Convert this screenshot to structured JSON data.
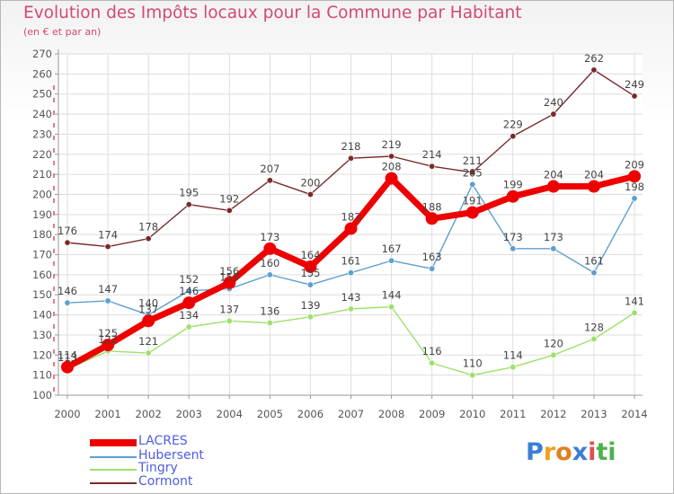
{
  "title": "Evolution des Impôts locaux pour la Commune par Habitant",
  "subtitle": "(en € et par an)",
  "brand": {
    "letters": [
      "P",
      "r",
      "o",
      "x",
      "i",
      "t",
      "i"
    ],
    "colors": [
      "#3a7fd5",
      "#f0a020",
      "#e08020",
      "#3a7fd5",
      "#e05050",
      "#50b050",
      "#50b050"
    ]
  },
  "chart_data": {
    "type": "line",
    "x": [
      "2000",
      "2001",
      "2002",
      "2003",
      "2004",
      "2005",
      "2006",
      "2007",
      "2008",
      "2009",
      "2010",
      "2011",
      "2012",
      "2013",
      "2014"
    ],
    "ylim": [
      100,
      270
    ],
    "yticks": [
      100,
      110,
      120,
      130,
      140,
      150,
      160,
      170,
      180,
      190,
      200,
      210,
      220,
      230,
      240,
      250,
      260,
      270
    ],
    "grid": true,
    "legend_position": "bottom-left",
    "series": [
      {
        "name": "Cormont",
        "color": "#7a2a2a",
        "values": [
          176,
          174,
          178,
          195,
          192,
          207,
          200,
          218,
          219,
          214,
          211,
          229,
          240,
          262,
          249
        ]
      },
      {
        "name": "Tingry",
        "color": "#9ee06a",
        "values": [
          113,
          122,
          121,
          134,
          137,
          136,
          139,
          143,
          144,
          116,
          110,
          114,
          120,
          128,
          141
        ]
      },
      {
        "name": "Hubersent",
        "color": "#5c9fd0",
        "values": [
          146,
          147,
          140,
          152,
          153,
          160,
          155,
          161,
          167,
          163,
          205,
          173,
          173,
          161,
          198
        ]
      },
      {
        "name": "LACRES",
        "color": "#ee0000",
        "values": [
          114,
          125,
          137,
          146,
          156,
          173,
          164,
          183,
          208,
          188,
          191,
          199,
          204,
          204,
          209
        ]
      }
    ],
    "labels": {
      "Cormont": [
        "176",
        "174",
        "178",
        "195",
        "192",
        "207",
        "200",
        "218",
        "219",
        "214",
        "211",
        "229",
        "240",
        "262",
        "249"
      ],
      "Tingry": [
        "113",
        "122",
        "121",
        "134",
        "137",
        "136",
        "139",
        "143",
        "144",
        "116",
        "110",
        "114",
        "120",
        "128",
        "141"
      ],
      "Hubersent": [
        "146",
        "147",
        "140",
        "152",
        "153",
        "160",
        "155",
        "161",
        "167",
        "163",
        "205",
        "173",
        "173",
        "161",
        "198"
      ],
      "LACRES": [
        "114",
        "125",
        "137",
        "146",
        "156",
        "173",
        "164",
        "183",
        "208",
        "188",
        "191",
        "199",
        "204",
        "204",
        "209"
      ]
    },
    "legend": [
      "LACRES",
      "Hubersent",
      "Tingry",
      "Cormont"
    ]
  }
}
